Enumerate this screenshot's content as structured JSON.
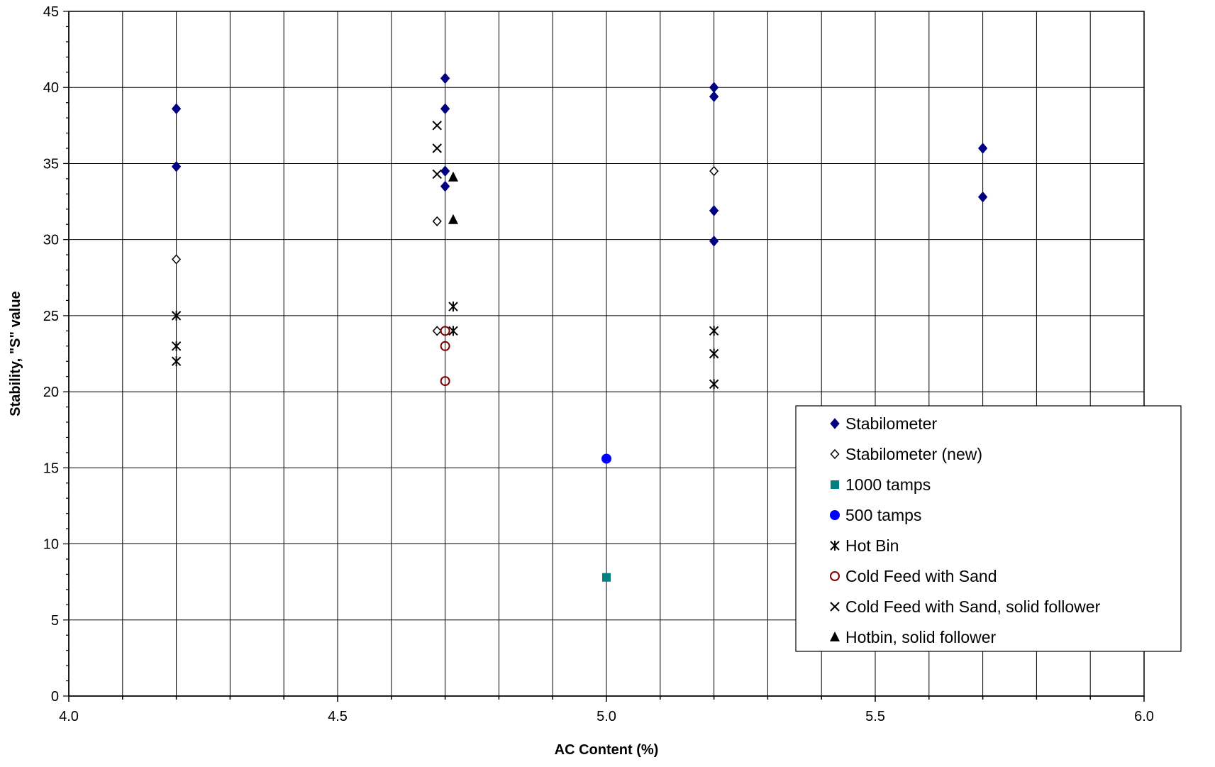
{
  "chart_data": {
    "type": "scatter",
    "title": "",
    "xlabel": "AC Content (%)",
    "ylabel": "Stability, \"S\" value",
    "xlim": [
      4.0,
      6.0
    ],
    "ylim": [
      0,
      45
    ],
    "x_major_ticks": [
      "4.0",
      "4.5",
      "5.0",
      "5.5",
      "6.0"
    ],
    "y_major_ticks": [
      "0",
      "5",
      "10",
      "15",
      "20",
      "25",
      "30",
      "35",
      "40",
      "45"
    ],
    "grid": true,
    "legend_position": "bottom-right",
    "series": [
      {
        "name": "Stabilometer",
        "marker": "diamond-filled",
        "color": "#000080",
        "points": [
          [
            4.2,
            38.6
          ],
          [
            4.2,
            34.8
          ],
          [
            4.7,
            40.6
          ],
          [
            4.7,
            38.6
          ],
          [
            4.7,
            34.5
          ],
          [
            4.7,
            33.5
          ],
          [
            5.2,
            40.0
          ],
          [
            5.2,
            39.4
          ],
          [
            5.2,
            31.9
          ],
          [
            5.2,
            29.9
          ],
          [
            5.7,
            36.0
          ],
          [
            5.7,
            32.8
          ]
        ]
      },
      {
        "name": "Stabilometer (new)",
        "marker": "diamond-open",
        "color": "#000000",
        "points": [
          [
            4.2,
            28.7
          ],
          [
            4.685,
            31.2
          ],
          [
            4.685,
            24.0
          ],
          [
            5.2,
            34.5
          ]
        ]
      },
      {
        "name": "1000 tamps",
        "marker": "square-filled",
        "color": "#008080",
        "points": [
          [
            5.0,
            7.8
          ]
        ]
      },
      {
        "name": "500 tamps",
        "marker": "circle-filled",
        "color": "#0000ff",
        "points": [
          [
            5.0,
            15.6
          ]
        ]
      },
      {
        "name": "Hot Bin",
        "marker": "asterisk",
        "color": "#000000",
        "points": [
          [
            4.2,
            25.0
          ],
          [
            4.2,
            23.0
          ],
          [
            4.2,
            22.0
          ],
          [
            4.715,
            25.6
          ],
          [
            4.715,
            24.0
          ],
          [
            5.2,
            24.0
          ],
          [
            5.2,
            22.5
          ],
          [
            5.2,
            20.5
          ]
        ]
      },
      {
        "name": "Cold Feed with Sand",
        "marker": "circle-open",
        "color": "#800000",
        "points": [
          [
            4.7,
            24.0
          ],
          [
            4.7,
            23.0
          ],
          [
            4.7,
            20.7
          ]
        ]
      },
      {
        "name": "Cold Feed with Sand, solid follower",
        "marker": "x",
        "color": "#000000",
        "points": [
          [
            4.685,
            37.5
          ],
          [
            4.685,
            36.0
          ],
          [
            4.685,
            34.3
          ]
        ]
      },
      {
        "name": "Hotbin, solid follower",
        "marker": "triangle-filled",
        "color": "#000000",
        "points": [
          [
            4.715,
            34.1
          ],
          [
            4.715,
            31.3
          ]
        ]
      }
    ]
  }
}
